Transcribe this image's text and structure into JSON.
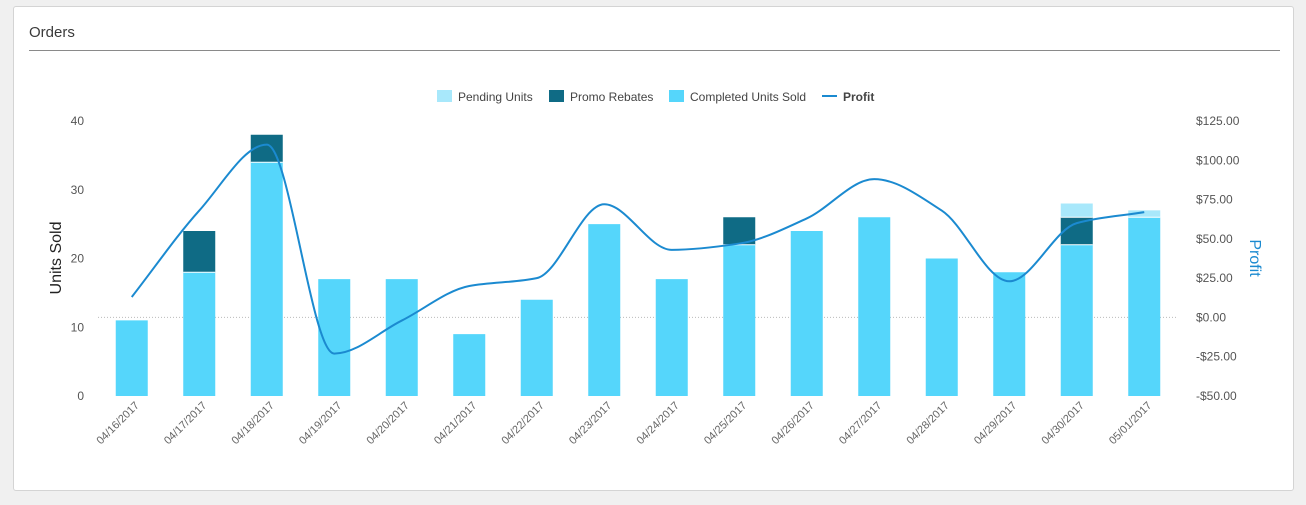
{
  "card": {
    "title": "Orders"
  },
  "colors": {
    "completed": "#55d6fb",
    "promo": "#0f6b85",
    "pending": "#a8e8fb",
    "profit": "#1b8ad0",
    "y2_title": "#1b8ad0"
  },
  "chart_data": {
    "type": "bar",
    "stacked": true,
    "categories": [
      "04/16/2017",
      "04/17/2017",
      "04/18/2017",
      "04/19/2017",
      "04/20/2017",
      "04/21/2017",
      "04/22/2017",
      "04/23/2017",
      "04/24/2017",
      "04/25/2017",
      "04/26/2017",
      "04/27/2017",
      "04/28/2017",
      "04/29/2017",
      "04/30/2017",
      "05/01/2017"
    ],
    "series": [
      {
        "name": "Pending Units",
        "type": "bar",
        "values": [
          0,
          0,
          0,
          0,
          0,
          0,
          0,
          0,
          0,
          0,
          0,
          0,
          0,
          0,
          2,
          1
        ]
      },
      {
        "name": "Promo Rebates",
        "type": "bar",
        "values": [
          0,
          6,
          4,
          0,
          0,
          0,
          0,
          0,
          0,
          4,
          0,
          0,
          0,
          0,
          4,
          0
        ]
      },
      {
        "name": "Completed Units Sold",
        "type": "bar",
        "values": [
          11,
          18,
          34,
          17,
          17,
          9,
          14,
          25,
          17,
          22,
          24,
          26,
          20,
          18,
          22,
          26
        ]
      },
      {
        "name": "Profit",
        "type": "line",
        "axis": "right",
        "values": [
          13,
          68,
          110,
          -23,
          -2,
          20,
          25,
          72,
          43,
          47,
          63,
          88,
          68,
          23,
          60,
          67
        ]
      }
    ],
    "legend_order": [
      "Pending Units",
      "Promo Rebates",
      "Completed Units Sold",
      "Profit"
    ],
    "legend_position": "top-center",
    "ylabel": "Units Sold",
    "ylim": [
      0,
      40
    ],
    "yticks": [
      0,
      10,
      20,
      30,
      40
    ],
    "ytick_labels": [
      "0",
      "10",
      "20",
      "30",
      "40"
    ],
    "y2label": "Profit",
    "y2lim": [
      -50,
      125
    ],
    "y2ticks": [
      -50,
      -25,
      0,
      25,
      50,
      75,
      100,
      125
    ],
    "y2tick_labels": [
      "-$50.00",
      "-$25.00",
      "$0.00",
      "$25.00",
      "$50.00",
      "$75.00",
      "$100.00",
      "$125.00"
    ],
    "y2_zero_line": "dotted",
    "grid": false,
    "xtick_rotation": -45
  }
}
